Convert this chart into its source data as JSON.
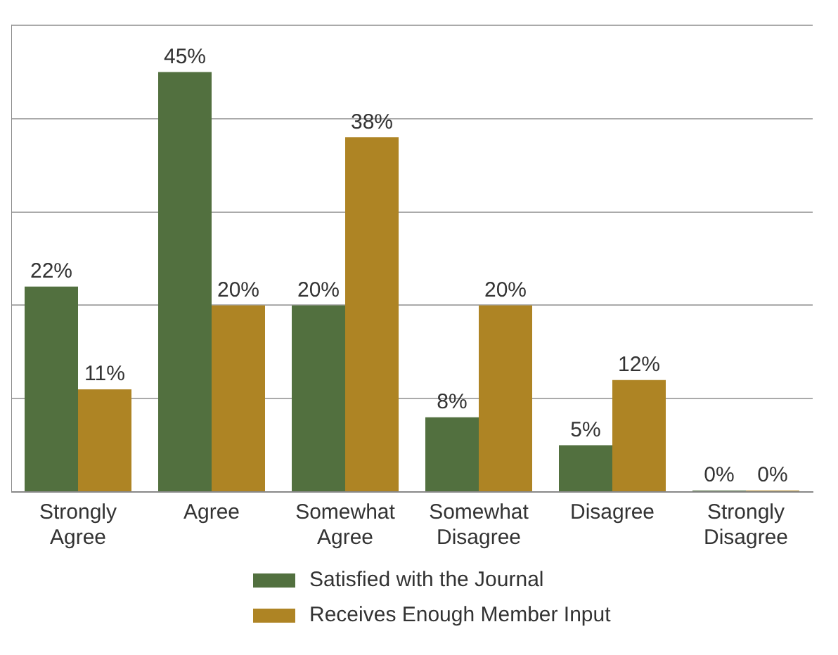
{
  "chart_data": {
    "type": "bar",
    "categories": [
      "Strongly Agree",
      "Agree",
      "Somewhat Agree",
      "Somewhat Disagree",
      "Disagree",
      "Strongly Disagree"
    ],
    "series": [
      {
        "name": "Satisfied with the Journal",
        "color": "#52703f",
        "values": [
          22,
          45,
          20,
          8,
          5,
          0
        ],
        "value_labels": [
          "22%",
          "45%",
          "20%",
          "8%",
          "5%",
          "0%"
        ]
      },
      {
        "name": "Receives Enough Member Input",
        "color": "#ae8424",
        "values": [
          11,
          20,
          38,
          20,
          12,
          0
        ],
        "value_labels": [
          "11%",
          "20%",
          "38%",
          "20%",
          "12%",
          "0%"
        ]
      }
    ],
    "ylim": [
      0,
      50
    ],
    "yticks": [
      {
        "value": 0,
        "label": null
      },
      {
        "value": 10,
        "label": null
      },
      {
        "value": 20,
        "label": null
      },
      {
        "value": 30,
        "label": null
      },
      {
        "value": 40,
        "label": null
      },
      {
        "value": 50,
        "label": null
      }
    ],
    "grid": "y",
    "tick_labels": "x",
    "legend": "bottom"
  }
}
